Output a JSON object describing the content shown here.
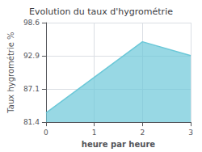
{
  "chart_data": {
    "type": "area",
    "title": "Evolution du taux d'hygrométrie",
    "xlabel": "heure par heure",
    "ylabel": "Taux hygrométrie %",
    "x": [
      0,
      2,
      3
    ],
    "values": [
      83.0,
      95.3,
      92.9
    ],
    "xlim": [
      0,
      3
    ],
    "xticks": [
      0,
      1,
      2,
      3
    ],
    "ylim": [
      81.4,
      98.6
    ],
    "yticks": [
      81.4,
      87.1,
      92.9,
      98.6
    ],
    "color": "#6cc8d8",
    "grid": true
  }
}
